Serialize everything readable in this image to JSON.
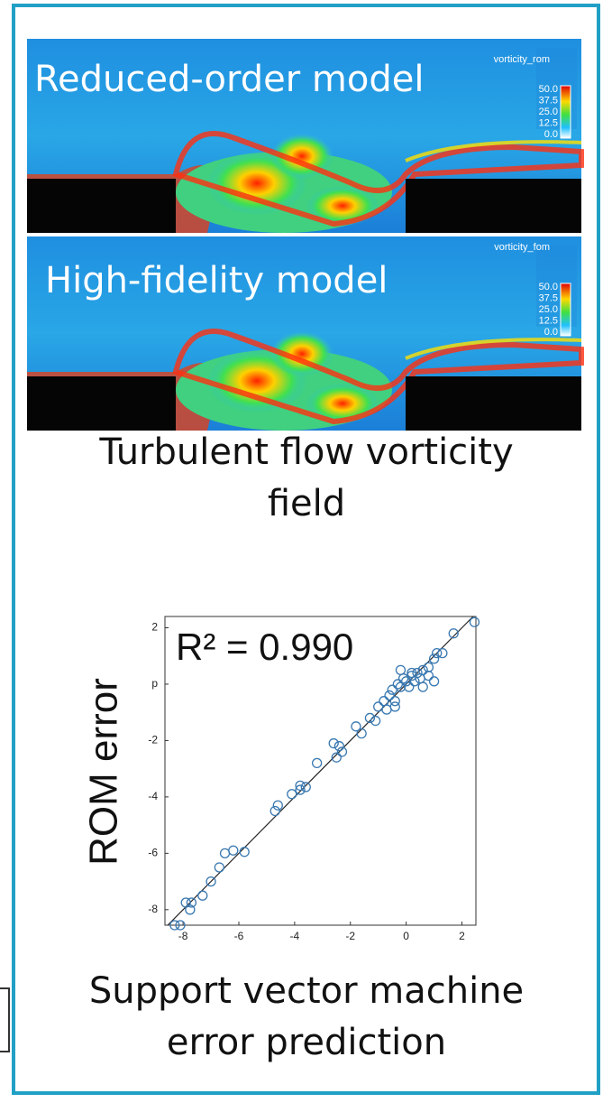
{
  "top_panel": {
    "label": "Reduced-order model",
    "colorbar_title": "vorticity_rom",
    "colorbar_ticks": [
      "50.0",
      "37.5",
      "25.0",
      "12.5",
      "0.0"
    ]
  },
  "bottom_panel": {
    "label": "High-fidelity model",
    "colorbar_title": "vorticity_fom",
    "colorbar_ticks": [
      "50.0",
      "37.5",
      "25.0",
      "12.5",
      "0.0"
    ]
  },
  "flow_caption": [
    "Turbulent flow vorticity",
    "field"
  ],
  "chart_caption": [
    "Support vector machine",
    "error prediction"
  ],
  "chart_data": {
    "type": "scatter",
    "ylabel": "ROM error",
    "annotation": "R² = 0.990",
    "color": "#3a78b0",
    "xlim": [
      -8.65,
      2.5
    ],
    "ylim": [
      -8.55,
      2.4
    ],
    "xticks": [
      -8,
      -6,
      -4,
      -2,
      0,
      2
    ],
    "yticks": [
      2,
      {
        "value": 0,
        "label": "p"
      },
      -2,
      -4,
      -6,
      -8
    ],
    "x": [
      -8.3,
      -8.1,
      -7.9,
      -7.7,
      -7.75,
      -7.3,
      -7.0,
      -6.7,
      -6.5,
      -6.2,
      -5.8,
      -4.7,
      -4.6,
      -4.1,
      -3.8,
      -3.6,
      -3.8,
      -3.2,
      -2.6,
      -2.4,
      -2.3,
      -2.5,
      -1.8,
      -1.6,
      -1.3,
      -1.1,
      -1.0,
      -0.8,
      -0.7,
      -0.6,
      -0.5,
      -0.4,
      -0.3,
      -0.2,
      -0.1,
      0,
      0.1,
      0.2,
      0.3,
      0.4,
      0.5,
      0.6,
      0.8,
      1.0,
      1.1,
      1.3,
      0.8,
      -0.2,
      0.2,
      1.7,
      2.45,
      -0.4,
      0.6,
      1.0
    ],
    "y": [
      -8.55,
      -8.55,
      -7.75,
      -7.75,
      -8.0,
      -7.5,
      -7.0,
      -6.5,
      -6.0,
      -5.9,
      -5.95,
      -4.5,
      -4.3,
      -3.9,
      -3.6,
      -3.65,
      -3.75,
      -2.8,
      -2.1,
      -2.2,
      -2.4,
      -2.6,
      -1.5,
      -1.75,
      -1.2,
      -1.3,
      -0.8,
      -0.6,
      -0.9,
      -0.4,
      -0.2,
      -0.6,
      0,
      -0.1,
      0.2,
      0.1,
      -0.1,
      0.3,
      0.1,
      0.4,
      0.2,
      0.5,
      0.3,
      0.9,
      1.1,
      1.1,
      0.6,
      0.5,
      0.4,
      1.8,
      2.2,
      -0.8,
      -0.1,
      0.1
    ]
  }
}
